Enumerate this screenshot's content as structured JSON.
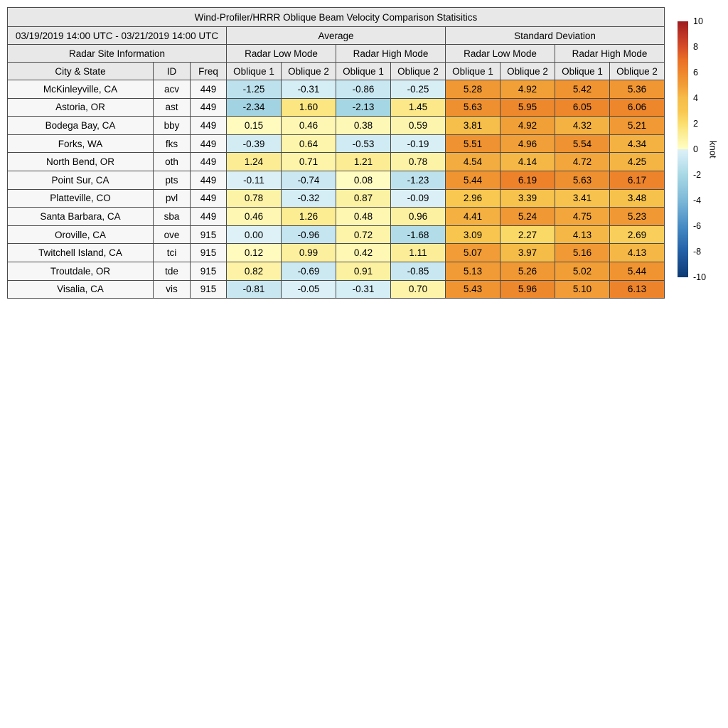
{
  "chart_data": {
    "type": "table",
    "title": "Wind-Profiler/HRRR Oblique Beam Velocity Comparison Statisitics",
    "header": {
      "date_range": "03/19/2019 14:00 UTC - 03/21/2019 14:00 UTC",
      "group_average": "Average",
      "group_stddev": "Standard Deviation",
      "radar_site_info": "Radar Site Information",
      "mode_labels": [
        "Radar Low Mode",
        "Radar High Mode",
        "Radar Low Mode",
        "Radar High Mode"
      ],
      "col_city": "City & State",
      "col_id": "ID",
      "col_freq": "Freq",
      "oblique_labels": [
        "Oblique 1",
        "Oblique 2",
        "Oblique 1",
        "Oblique 2",
        "Oblique 1",
        "Oblique 2",
        "Oblique 1",
        "Oblique 2"
      ]
    },
    "columns": [
      "City & State",
      "ID",
      "Freq",
      "Avg Low Oblique 1",
      "Avg Low Oblique 2",
      "Avg High Oblique 1",
      "Avg High Oblique 2",
      "Std Low Oblique 1",
      "Std Low Oblique 2",
      "Std High Oblique 1",
      "Std High Oblique 2"
    ],
    "rows": [
      [
        "McKinleyville, CA",
        "acv",
        "449",
        -1.25,
        -0.31,
        -0.86,
        -0.25,
        5.28,
        4.92,
        5.42,
        5.36
      ],
      [
        "Astoria, OR",
        "ast",
        "449",
        -2.34,
        1.6,
        -2.13,
        1.45,
        5.63,
        5.95,
        6.05,
        6.06
      ],
      [
        "Bodega Bay, CA",
        "bby",
        "449",
        0.15,
        0.46,
        0.38,
        0.59,
        3.81,
        4.92,
        4.32,
        5.21
      ],
      [
        "Forks, WA",
        "fks",
        "449",
        -0.39,
        0.64,
        -0.53,
        -0.19,
        5.51,
        4.96,
        5.54,
        4.34
      ],
      [
        "North Bend, OR",
        "oth",
        "449",
        1.24,
        0.71,
        1.21,
        0.78,
        4.54,
        4.14,
        4.72,
        4.25
      ],
      [
        "Point Sur, CA",
        "pts",
        "449",
        -0.11,
        -0.74,
        0.08,
        -1.23,
        5.44,
        6.19,
        5.63,
        6.17
      ],
      [
        "Platteville, CO",
        "pvl",
        "449",
        0.78,
        -0.32,
        0.87,
        -0.09,
        2.96,
        3.39,
        3.41,
        3.48
      ],
      [
        "Santa Barbara, CA",
        "sba",
        "449",
        0.46,
        1.26,
        0.48,
        0.96,
        4.41,
        5.24,
        4.75,
        5.23
      ],
      [
        "Oroville, CA",
        "ove",
        "915",
        0.0,
        -0.96,
        0.72,
        -1.68,
        3.09,
        2.27,
        4.13,
        2.69
      ],
      [
        "Twitchell Island, CA",
        "tci",
        "915",
        0.12,
        0.99,
        0.42,
        1.11,
        5.07,
        3.97,
        5.16,
        4.13
      ],
      [
        "Troutdale, OR",
        "tde",
        "915",
        0.82,
        -0.69,
        0.91,
        -0.85,
        5.13,
        5.26,
        5.02,
        5.44
      ],
      [
        "Visalia, CA",
        "vis",
        "915",
        -0.81,
        -0.05,
        -0.31,
        0.7,
        5.43,
        5.96,
        5.1,
        6.13
      ]
    ],
    "colorbar": {
      "unit": "knot",
      "min": -10,
      "max": 10,
      "ticks": [
        10,
        8,
        6,
        4,
        2,
        0,
        -2,
        -4,
        -6,
        -8,
        -10
      ]
    },
    "colors": {
      "header_bg": "#e8e8e8",
      "label_bg": "#f7f7f7",
      "border": "#4a4a4a",
      "cmap_anchors": [
        [
          -10,
          "#0d3a73"
        ],
        [
          -8,
          "#225fa6"
        ],
        [
          -6,
          "#468cc4"
        ],
        [
          -4,
          "#7db8d8"
        ],
        [
          -2,
          "#a8d8e4"
        ],
        [
          -1,
          "#c4e5f0"
        ],
        [
          0,
          "#ddf1f7"
        ],
        [
          0.001,
          "#fffdc4"
        ],
        [
          1,
          "#fcf09e"
        ],
        [
          2,
          "#fbdf6f"
        ],
        [
          3,
          "#f8c750"
        ],
        [
          4,
          "#f6bc48"
        ],
        [
          5,
          "#f19e37"
        ],
        [
          6,
          "#ee872c"
        ],
        [
          7,
          "#e96f26"
        ],
        [
          8,
          "#d54d28"
        ],
        [
          9,
          "#bc3425"
        ],
        [
          10,
          "#9e1b1f"
        ]
      ]
    }
  }
}
